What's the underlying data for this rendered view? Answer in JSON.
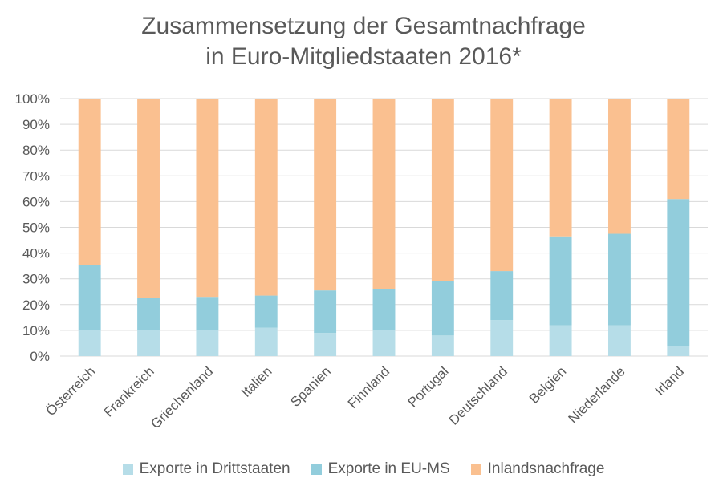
{
  "chart_data": {
    "type": "bar",
    "stacked": true,
    "title_lines": [
      "Zusammensetzung  der Gesamtnachfrage",
      "in Euro-Mitgliedstaaten 2016*"
    ],
    "categories": [
      "Österreich",
      "Frankreich",
      "Griechenland",
      "Italien",
      "Spanien",
      "Finnland",
      "Portugal",
      "Deutschland",
      "Belgien",
      "Niederlande",
      "Irland"
    ],
    "series": [
      {
        "name": "Exporte in Drittstaaten",
        "color": "#b6dde8",
        "values": [
          10,
          10,
          10,
          11,
          9,
          10,
          8,
          14,
          12,
          12,
          4
        ]
      },
      {
        "name": "Exporte in EU-MS",
        "color": "#92cddc",
        "values": [
          25.5,
          12.5,
          13,
          12.5,
          16.5,
          16,
          21,
          19,
          34.5,
          35.5,
          57
        ]
      },
      {
        "name": "Inlandsnachfrage",
        "color": "#fac090",
        "values": [
          64.5,
          77.5,
          77,
          76.5,
          74.5,
          74,
          71,
          67,
          53.5,
          52.5,
          39
        ]
      }
    ],
    "ylim": [
      0,
      100
    ],
    "yticks": [
      0,
      10,
      20,
      30,
      40,
      50,
      60,
      70,
      80,
      90,
      100
    ],
    "ytick_labels": [
      "0%",
      "10%",
      "20%",
      "30%",
      "40%",
      "50%",
      "60%",
      "70%",
      "80%",
      "90%",
      "100%"
    ],
    "xlabel": "",
    "ylabel": "",
    "grid": true,
    "legend_position": "bottom"
  }
}
